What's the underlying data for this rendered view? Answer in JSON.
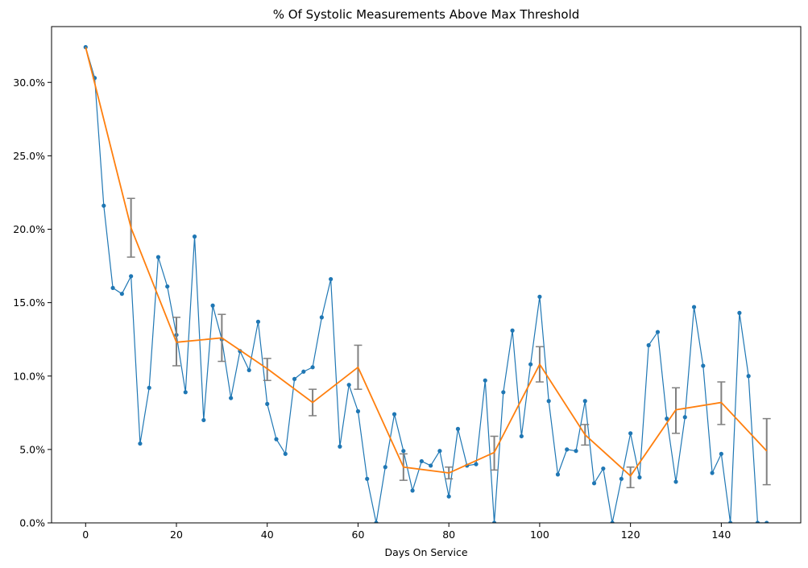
{
  "chart_data": {
    "type": "line",
    "title": "% Of Systolic Measurements Above Max Threshold",
    "xlabel": "Days On Service",
    "ylabel": "",
    "xlim": [
      -7.5,
      157.5
    ],
    "ylim": [
      0,
      0.338
    ],
    "x_ticks": [
      0,
      20,
      40,
      60,
      80,
      100,
      120,
      140
    ],
    "x_tick_labels": [
      "0",
      "20",
      "40",
      "60",
      "80",
      "100",
      "120",
      "140"
    ],
    "y_ticks": [
      0,
      0.05,
      0.1,
      0.15,
      0.2,
      0.25,
      0.3
    ],
    "y_tick_labels": [
      "0.0%",
      "5.0%",
      "10.0%",
      "15.0%",
      "20.0%",
      "25.0%",
      "30.0%"
    ],
    "grid": false,
    "legend": "none",
    "series": [
      {
        "kind": "daily",
        "color": "#1f77b4",
        "x": [
          0,
          2,
          4,
          6,
          8,
          10,
          12,
          14,
          16,
          18,
          20,
          22,
          24,
          26,
          28,
          30,
          32,
          34,
          36,
          38,
          40,
          42,
          44,
          46,
          48,
          50,
          52,
          54,
          56,
          58,
          60,
          62,
          64,
          66,
          68,
          70,
          72,
          74,
          76,
          78,
          80,
          82,
          84,
          86,
          88,
          90,
          92,
          94,
          96,
          98,
          100,
          102,
          104,
          106,
          108,
          110,
          112,
          114,
          116,
          118,
          120,
          122,
          124,
          126,
          128,
          130,
          132,
          134,
          136,
          138,
          140,
          142,
          144,
          146,
          148,
          150
        ],
        "y": [
          0.324,
          0.303,
          0.216,
          0.16,
          0.156,
          0.168,
          0.054,
          0.092,
          0.181,
          0.161,
          0.128,
          0.089,
          0.195,
          0.07,
          0.148,
          0.125,
          0.085,
          0.117,
          0.104,
          0.137,
          0.081,
          0.057,
          0.047,
          0.098,
          0.103,
          0.106,
          0.14,
          0.166,
          0.052,
          0.094,
          0.076,
          0.03,
          0.0,
          0.038,
          0.074,
          0.049,
          0.022,
          0.042,
          0.039,
          0.049,
          0.018,
          0.064,
          0.039,
          0.04,
          0.097,
          0.0,
          0.089,
          0.131,
          0.059,
          0.108,
          0.154,
          0.083,
          0.033,
          0.05,
          0.049,
          0.083,
          0.027,
          0.037,
          0.0,
          0.03,
          0.061,
          0.031,
          0.121,
          0.13,
          0.071,
          0.028,
          0.072,
          0.147,
          0.107,
          0.034,
          0.047,
          0.0,
          0.143,
          0.1,
          0.0,
          0.0
        ]
      },
      {
        "kind": "binned_mean",
        "color": "#ff7f0e",
        "x": [
          0,
          10,
          20,
          30,
          40,
          50,
          60,
          70,
          80,
          90,
          100,
          110,
          120,
          130,
          140,
          150
        ],
        "y": [
          0.324,
          0.201,
          0.123,
          0.126,
          0.105,
          0.082,
          0.106,
          0.038,
          0.034,
          0.048,
          0.108,
          0.06,
          0.032,
          0.077,
          0.082,
          0.049
        ],
        "err_low": [
          null,
          0.181,
          0.107,
          0.11,
          0.097,
          0.073,
          0.091,
          0.029,
          0.03,
          0.036,
          0.096,
          0.053,
          0.024,
          0.061,
          0.067,
          0.026
        ],
        "err_high": [
          null,
          0.221,
          0.14,
          0.142,
          0.112,
          0.091,
          0.121,
          0.047,
          0.038,
          0.059,
          0.12,
          0.067,
          0.038,
          0.092,
          0.096,
          0.071
        ]
      }
    ],
    "errorbar_color": "#808080"
  }
}
